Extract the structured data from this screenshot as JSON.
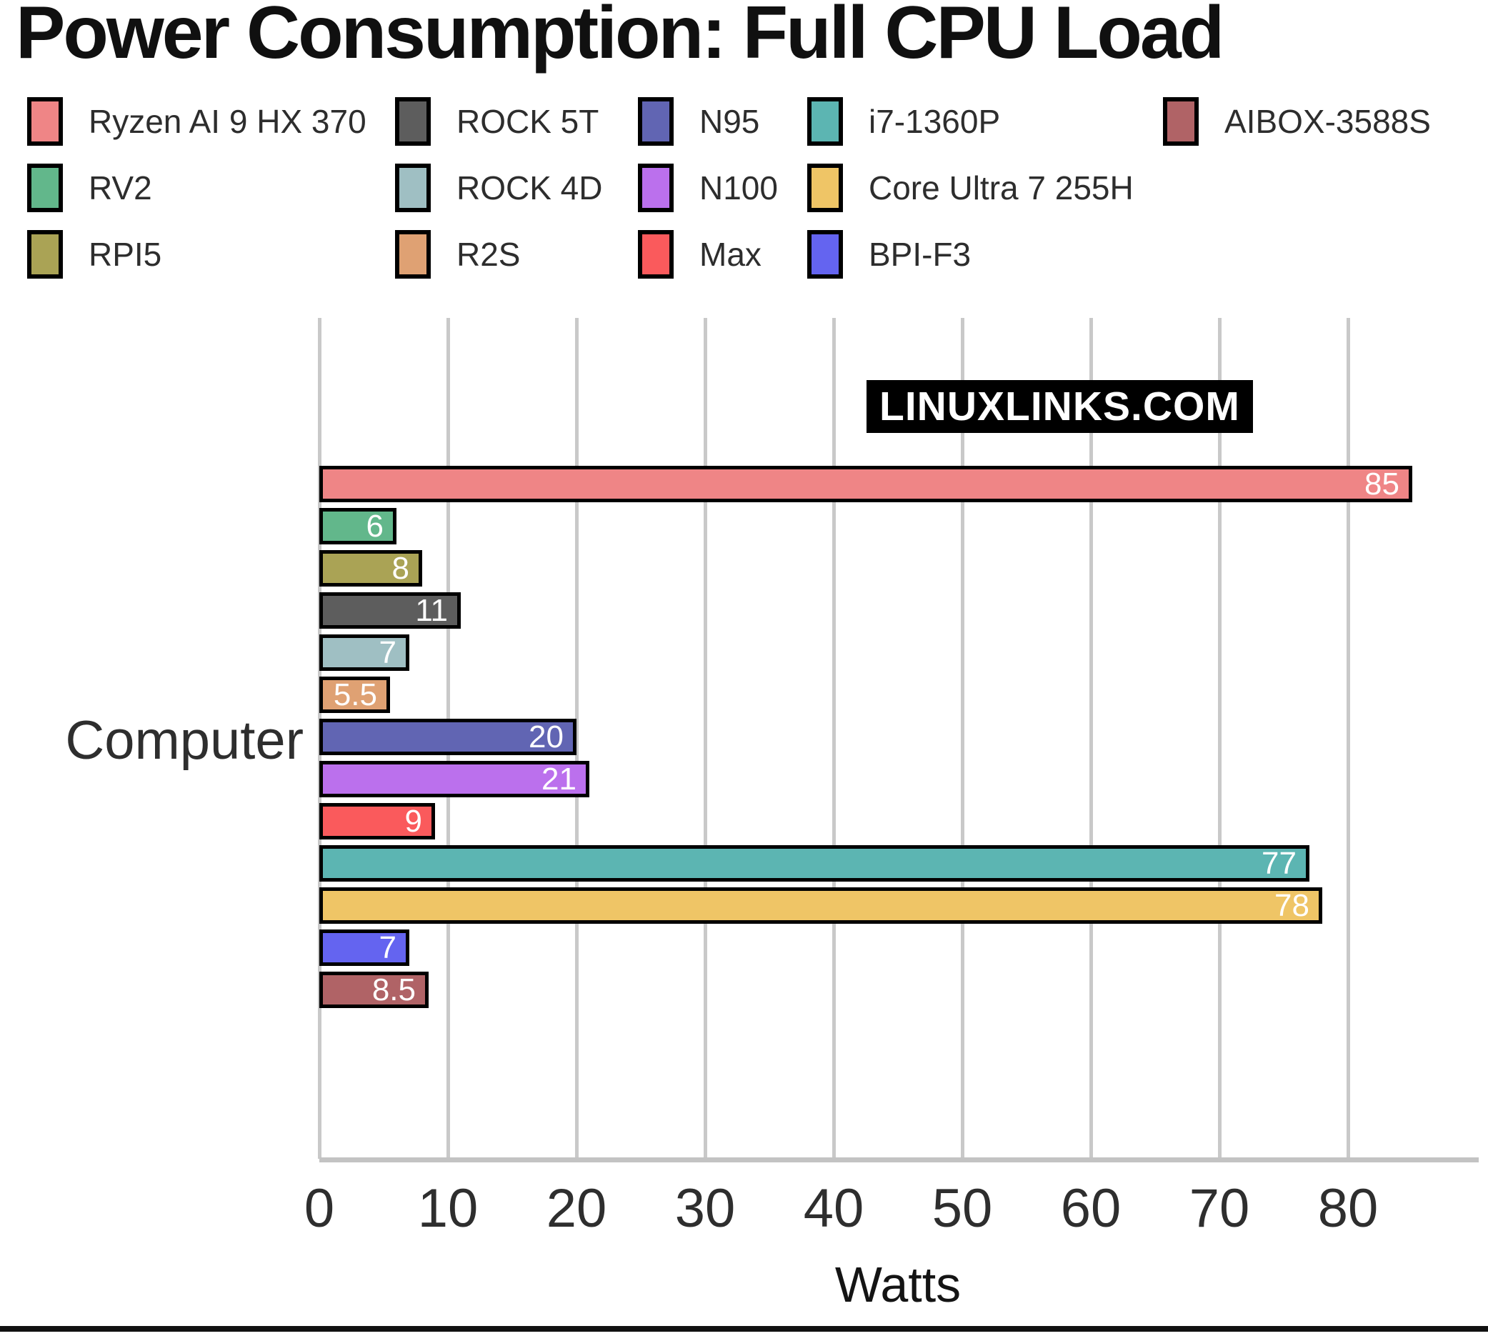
{
  "title": "Power Consumption: Full CPU Load",
  "watermark": "LINUXLINKS.COM",
  "chart_data": {
    "type": "bar",
    "orientation": "horizontal",
    "title": "Power Consumption: Full CPU Load",
    "xlabel": "Watts",
    "ylabel": "Computer",
    "xlim": [
      0,
      90
    ],
    "xticks": [
      0,
      10,
      20,
      30,
      40,
      50,
      60,
      70,
      80
    ],
    "grid": true,
    "legend_position": "top-left",
    "value_labels": "inside-right, white",
    "series": [
      {
        "name": "Ryzen AI 9 HX 370",
        "value": 85,
        "label": "85",
        "color": "#ef8586",
        "legend_row": 0,
        "legend_col": 0
      },
      {
        "name": "RV2",
        "value": 6,
        "label": "6",
        "color": "#62b78b",
        "legend_row": 1,
        "legend_col": 0
      },
      {
        "name": "RPI5",
        "value": 8,
        "label": "8",
        "color": "#aaa355",
        "legend_row": 2,
        "legend_col": 0
      },
      {
        "name": "ROCK 5T",
        "value": 11,
        "label": "11",
        "color": "#5d5d5d",
        "legend_row": 0,
        "legend_col": 1
      },
      {
        "name": "ROCK 4D",
        "value": 7,
        "label": "7",
        "color": "#9fbfc3",
        "legend_row": 1,
        "legend_col": 1
      },
      {
        "name": "R2S",
        "value": 5.5,
        "label": "5.5",
        "color": "#dfa173",
        "legend_row": 2,
        "legend_col": 1
      },
      {
        "name": "N95",
        "value": 20,
        "label": "20",
        "color": "#6165b3",
        "legend_row": 0,
        "legend_col": 2
      },
      {
        "name": "N100",
        "value": 21,
        "label": "21",
        "color": "#bb70ed",
        "legend_row": 1,
        "legend_col": 2
      },
      {
        "name": "Max",
        "value": 9,
        "label": "9",
        "color": "#fa5a5c",
        "legend_row": 2,
        "legend_col": 2
      },
      {
        "name": "i7-1360P",
        "value": 77,
        "label": "77",
        "color": "#5cb5b2",
        "legend_row": 0,
        "legend_col": 3
      },
      {
        "name": "Core Ultra 7 255H",
        "value": 78,
        "label": "78",
        "color": "#efc566",
        "legend_row": 1,
        "legend_col": 3
      },
      {
        "name": "BPI-F3",
        "value": 7,
        "label": "7",
        "color": "#6464f0",
        "legend_row": 2,
        "legend_col": 3
      },
      {
        "name": "AIBOX-3588S",
        "value": 8.5,
        "label": "8.5",
        "color": "#b06366",
        "legend_row": 0,
        "legend_col": 4
      }
    ]
  }
}
